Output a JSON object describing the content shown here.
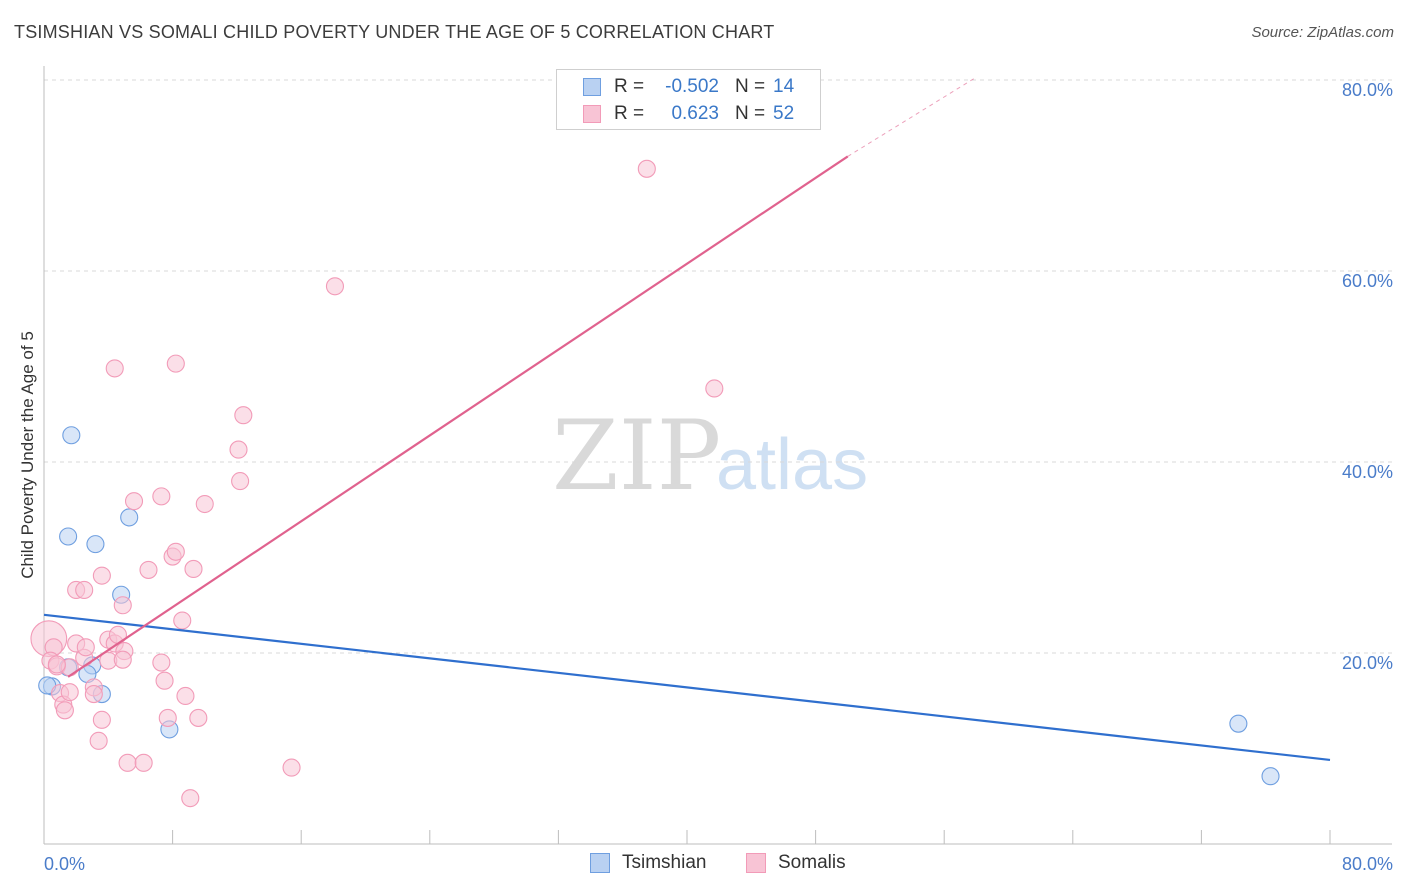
{
  "title": "TSIMSHIAN VS SOMALI CHILD POVERTY UNDER THE AGE OF 5 CORRELATION CHART",
  "source": "Source: ZipAtlas.com",
  "watermark": {
    "zip": "ZIP",
    "atlas": "atlas"
  },
  "legend_top": [
    {
      "r_label": "R =",
      "r_value": "-0.502",
      "n_label": "N =",
      "n_value": "14"
    },
    {
      "r_label": "R =",
      "r_value": "0.623",
      "n_label": "N =",
      "n_value": "52"
    }
  ],
  "legend_bottom": [
    {
      "label": "Tsimshian"
    },
    {
      "label": "Somalis"
    }
  ],
  "chart_data": {
    "type": "scatter",
    "ylabel": "Child Poverty Under the Age of 5",
    "xlabel": "",
    "xlim": [
      0,
      80
    ],
    "ylim": [
      0,
      80
    ],
    "x_tick_labels": [
      {
        "value": 0,
        "label": "0.0%"
      },
      {
        "value": 80,
        "label": "80.0%"
      }
    ],
    "y_tick_labels": [
      {
        "value": 20,
        "label": "20.0%"
      },
      {
        "value": 40,
        "label": "40.0%"
      },
      {
        "value": 60,
        "label": "60.0%"
      },
      {
        "value": 80,
        "label": "80.0%"
      }
    ],
    "x_minor_ticks": [
      0,
      8,
      16,
      24,
      32,
      40,
      48,
      56,
      64,
      72,
      80
    ],
    "grid": true,
    "legend_position": "top-center",
    "series": [
      {
        "name": "Tsimshian",
        "color": "#6f9fe0",
        "fill": "#b9d1f2",
        "line_color": "#2f6fce",
        "trend": {
          "x": [
            0,
            80
          ],
          "y": [
            24,
            8.8
          ]
        },
        "points": [
          {
            "x": 0.5,
            "y": 16.5,
            "s": 1
          },
          {
            "x": 1.5,
            "y": 18.5,
            "s": 1
          },
          {
            "x": 1.7,
            "y": 42.8,
            "s": 1
          },
          {
            "x": 1.5,
            "y": 32.2,
            "s": 1
          },
          {
            "x": 3.2,
            "y": 31.4,
            "s": 1
          },
          {
            "x": 5.3,
            "y": 34.2,
            "s": 1
          },
          {
            "x": 4.8,
            "y": 26.1,
            "s": 1
          },
          {
            "x": 3.0,
            "y": 18.7,
            "s": 1
          },
          {
            "x": 2.7,
            "y": 17.8,
            "s": 1
          },
          {
            "x": 3.6,
            "y": 15.7,
            "s": 1
          },
          {
            "x": 7.8,
            "y": 12.0,
            "s": 1
          },
          {
            "x": 74.3,
            "y": 12.6,
            "s": 1
          },
          {
            "x": 76.3,
            "y": 7.1,
            "s": 1
          },
          {
            "x": 0.2,
            "y": 16.6,
            "s": 1
          }
        ]
      },
      {
        "name": "Somalis",
        "color": "#f29bb8",
        "fill": "#f8c4d5",
        "line_color": "#e0628e",
        "trend": {
          "x": [
            1.5,
            50
          ],
          "y": [
            17.5,
            72
          ]
        },
        "trend_dashed": {
          "x": [
            50,
            58
          ],
          "y": [
            72,
            80.3
          ]
        },
        "points": [
          {
            "x": 0.3,
            "y": 21.5,
            "s": 2.1
          },
          {
            "x": 0.6,
            "y": 20.6,
            "s": 1
          },
          {
            "x": 0.4,
            "y": 19.2,
            "s": 1
          },
          {
            "x": 0.8,
            "y": 18.6,
            "s": 1
          },
          {
            "x": 1.0,
            "y": 15.8,
            "s": 1
          },
          {
            "x": 1.2,
            "y": 14.6,
            "s": 1
          },
          {
            "x": 1.6,
            "y": 15.9,
            "s": 1
          },
          {
            "x": 1.6,
            "y": 18.5,
            "s": 1
          },
          {
            "x": 2.0,
            "y": 21.0,
            "s": 1
          },
          {
            "x": 2.5,
            "y": 19.5,
            "s": 1
          },
          {
            "x": 2.0,
            "y": 26.6,
            "s": 1
          },
          {
            "x": 2.5,
            "y": 26.6,
            "s": 1
          },
          {
            "x": 3.1,
            "y": 16.4,
            "s": 1
          },
          {
            "x": 3.1,
            "y": 15.7,
            "s": 1
          },
          {
            "x": 3.4,
            "y": 10.8,
            "s": 1
          },
          {
            "x": 3.6,
            "y": 28.1,
            "s": 1
          },
          {
            "x": 3.6,
            "y": 13.0,
            "s": 1
          },
          {
            "x": 4.0,
            "y": 21.4,
            "s": 1
          },
          {
            "x": 4.0,
            "y": 19.2,
            "s": 1
          },
          {
            "x": 4.4,
            "y": 21.0,
            "s": 1
          },
          {
            "x": 4.6,
            "y": 21.9,
            "s": 1
          },
          {
            "x": 4.9,
            "y": 25.0,
            "s": 1
          },
          {
            "x": 5.0,
            "y": 20.2,
            "s": 1
          },
          {
            "x": 4.4,
            "y": 49.8,
            "s": 1
          },
          {
            "x": 5.2,
            "y": 8.5,
            "s": 1
          },
          {
            "x": 5.6,
            "y": 35.9,
            "s": 1
          },
          {
            "x": 6.2,
            "y": 8.5,
            "s": 1
          },
          {
            "x": 6.5,
            "y": 28.7,
            "s": 1
          },
          {
            "x": 7.3,
            "y": 19.0,
            "s": 1
          },
          {
            "x": 7.3,
            "y": 36.4,
            "s": 1
          },
          {
            "x": 7.5,
            "y": 17.1,
            "s": 1
          },
          {
            "x": 7.7,
            "y": 13.2,
            "s": 1
          },
          {
            "x": 8.0,
            "y": 30.1,
            "s": 1
          },
          {
            "x": 8.2,
            "y": 30.6,
            "s": 1
          },
          {
            "x": 8.2,
            "y": 50.3,
            "s": 1
          },
          {
            "x": 8.6,
            "y": 23.4,
            "s": 1
          },
          {
            "x": 8.8,
            "y": 15.5,
            "s": 1
          },
          {
            "x": 9.1,
            "y": 4.8,
            "s": 1
          },
          {
            "x": 9.3,
            "y": 28.8,
            "s": 1
          },
          {
            "x": 9.6,
            "y": 13.2,
            "s": 1
          },
          {
            "x": 10.0,
            "y": 35.6,
            "s": 1
          },
          {
            "x": 12.1,
            "y": 41.3,
            "s": 1
          },
          {
            "x": 12.2,
            "y": 38.0,
            "s": 1
          },
          {
            "x": 12.4,
            "y": 44.9,
            "s": 1
          },
          {
            "x": 15.4,
            "y": 8.0,
            "s": 1
          },
          {
            "x": 18.1,
            "y": 58.4,
            "s": 1
          },
          {
            "x": 37.5,
            "y": 70.7,
            "s": 1
          },
          {
            "x": 41.7,
            "y": 47.7,
            "s": 1
          },
          {
            "x": 0.8,
            "y": 18.8,
            "s": 1
          },
          {
            "x": 2.6,
            "y": 20.6,
            "s": 1
          },
          {
            "x": 1.3,
            "y": 14.0,
            "s": 1
          },
          {
            "x": 4.9,
            "y": 19.3,
            "s": 1
          }
        ]
      }
    ]
  }
}
